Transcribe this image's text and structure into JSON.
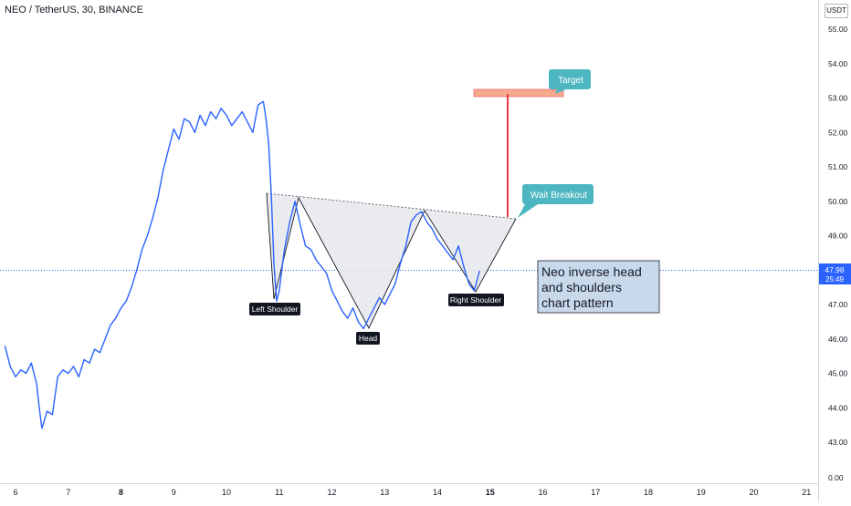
{
  "header": {
    "symbol": "NEO / TetherUS, 30, BINANCE",
    "currency": "USDT"
  },
  "price_scale": {
    "ticks": [
      "55.00",
      "54.00",
      "53.00",
      "52.00",
      "51.00",
      "50.00",
      "49.00",
      "48.00",
      "47.00",
      "46.00",
      "45.00",
      "44.00",
      "43.00",
      "0.00"
    ],
    "last_price": "47.98",
    "countdown": "25:49",
    "badge_color": "#2962ff"
  },
  "time_scale": {
    "ticks": [
      "6",
      "7",
      "8",
      "9",
      "10",
      "11",
      "12",
      "13",
      "14",
      "15",
      "16",
      "17",
      "18",
      "19",
      "20",
      "21"
    ],
    "bold_ticks": [
      "8",
      "15"
    ]
  },
  "annotations": {
    "left_shoulder": "Left Shoulder",
    "head": "Head",
    "right_shoulder": "Right Shoulder",
    "wait_breakout": "Wait Breakout",
    "target": "Target",
    "note": [
      "Neo inverse head",
      "and shoulders",
      "chart pattern"
    ]
  },
  "colors": {
    "price_line": "#2962ff",
    "pattern_fill": "#e6e7eb",
    "callout_fill": "#4db6c0",
    "target_zone": "#f7a98b",
    "projection": "#f23645",
    "note_fill": "#c9d9ec"
  },
  "chart_data": {
    "type": "line",
    "y_range": [
      42.5,
      55.3
    ],
    "x_range": [
      5.8,
      21.1
    ],
    "grid": false,
    "series": [
      {
        "x": [
          5.8,
          5.9,
          6.0,
          6.1,
          6.2,
          6.3,
          6.4,
          6.45,
          6.5,
          6.6,
          6.7,
          6.8,
          6.9,
          7.0,
          7.1,
          7.2,
          7.3,
          7.4,
          7.5,
          7.6,
          7.7,
          7.8,
          7.9,
          8.0,
          8.1,
          8.2,
          8.3,
          8.4,
          8.5,
          8.6,
          8.7,
          8.8,
          8.9,
          9.0,
          9.1,
          9.2,
          9.3,
          9.4,
          9.5,
          9.6,
          9.7,
          9.8,
          9.9,
          10.0,
          10.1,
          10.2,
          10.3,
          10.4,
          10.5,
          10.6,
          10.7,
          10.75,
          10.8,
          10.85,
          10.9,
          10.95,
          11.0,
          11.1,
          11.2,
          11.3,
          11.4,
          11.5,
          11.6,
          11.7,
          11.8,
          11.9,
          12.0,
          12.1,
          12.2,
          12.3,
          12.4,
          12.5,
          12.6,
          12.7,
          12.8,
          12.9,
          13.0,
          13.1,
          13.2,
          13.3,
          13.4,
          13.5,
          13.6,
          13.7,
          13.8,
          13.9,
          14.0,
          14.1,
          14.2,
          14.3,
          14.4,
          14.5,
          14.6,
          14.7,
          14.8
        ],
        "y": [
          45.8,
          45.2,
          44.9,
          45.1,
          45.0,
          45.3,
          44.7,
          44.0,
          43.4,
          43.9,
          43.8,
          44.9,
          45.1,
          45.0,
          45.2,
          44.9,
          45.4,
          45.3,
          45.7,
          45.6,
          46.0,
          46.4,
          46.6,
          46.9,
          47.1,
          47.5,
          48.0,
          48.6,
          49.0,
          49.5,
          50.1,
          50.9,
          51.5,
          52.1,
          51.8,
          52.4,
          52.3,
          52.0,
          52.5,
          52.2,
          52.6,
          52.4,
          52.7,
          52.5,
          52.2,
          52.4,
          52.6,
          52.3,
          52.0,
          52.8,
          52.9,
          52.4,
          51.7,
          50.2,
          48.2,
          47.1,
          47.4,
          48.6,
          49.4,
          50.0,
          49.3,
          48.7,
          48.6,
          48.3,
          48.1,
          47.9,
          47.4,
          47.1,
          46.8,
          46.6,
          46.9,
          46.5,
          46.3,
          46.6,
          46.9,
          47.2,
          47.0,
          47.3,
          47.6,
          48.2,
          48.7,
          49.4,
          49.6,
          49.7,
          49.4,
          49.2,
          48.9,
          48.7,
          48.5,
          48.3,
          48.7,
          48.1,
          47.6,
          47.4,
          47.98
        ]
      }
    ]
  }
}
